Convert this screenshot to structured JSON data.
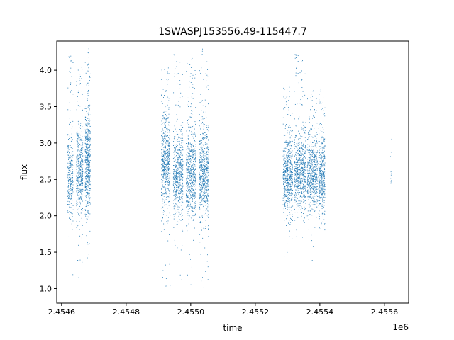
{
  "chart_data": {
    "type": "scatter",
    "title": "1SWASPJ153556.49-115447.7",
    "xlabel": "time",
    "ylabel": "flux",
    "x_offset_label": "1e6",
    "xlim": [
      2.454585,
      2.455675
    ],
    "ylim": [
      0.8,
      4.4
    ],
    "xticks": [
      2.4546,
      2.4548,
      2.455,
      2.4552,
      2.4554,
      2.4556
    ],
    "xtick_labels": [
      "2.4546",
      "2.4548",
      "2.4550",
      "2.4552",
      "2.4554",
      "2.4556"
    ],
    "yticks": [
      1.0,
      1.5,
      2.0,
      2.5,
      3.0,
      3.5,
      4.0
    ],
    "ytick_labels": [
      "1.0",
      "1.5",
      "2.0",
      "2.5",
      "3.0",
      "3.5",
      "4.0"
    ],
    "grid": false,
    "marker_color": "#1f77b4",
    "series": [
      {
        "note_visible_clusters": "dense point clouds per observing window",
        "clusters": [
          {
            "x_range": [
              2.454618,
              2.454635
            ],
            "y_center": 2.55,
            "y_spread": 0.28,
            "y_min": 1.15,
            "y_max": 4.25,
            "density": 300
          },
          {
            "x_range": [
              2.454645,
              2.454665
            ],
            "y_center": 2.6,
            "y_spread": 0.3,
            "y_min": 1.15,
            "y_max": 4.05,
            "density": 450
          },
          {
            "x_range": [
              2.454672,
              2.454688
            ],
            "y_center": 2.7,
            "y_spread": 0.33,
            "y_min": 1.35,
            "y_max": 4.3,
            "density": 550
          },
          {
            "x_range": [
              2.454908,
              2.454935
            ],
            "y_center": 2.75,
            "y_spread": 0.32,
            "y_min": 0.95,
            "y_max": 4.05,
            "density": 650
          },
          {
            "x_range": [
              2.454945,
              2.454975
            ],
            "y_center": 2.55,
            "y_spread": 0.28,
            "y_min": 1.1,
            "y_max": 4.25,
            "density": 600
          },
          {
            "x_range": [
              2.454985,
              2.455015
            ],
            "y_center": 2.55,
            "y_spread": 0.3,
            "y_min": 1.0,
            "y_max": 4.2,
            "density": 650
          },
          {
            "x_range": [
              2.455025,
              2.455055
            ],
            "y_center": 2.55,
            "y_spread": 0.3,
            "y_min": 0.95,
            "y_max": 4.32,
            "density": 650
          },
          {
            "x_range": [
              2.455285,
              2.455315
            ],
            "y_center": 2.55,
            "y_spread": 0.25,
            "y_min": 1.45,
            "y_max": 3.8,
            "density": 650
          },
          {
            "x_range": [
              2.45532,
              2.455355
            ],
            "y_center": 2.6,
            "y_spread": 0.26,
            "y_min": 1.65,
            "y_max": 4.25,
            "density": 650
          },
          {
            "x_range": [
              2.45536,
              2.455392
            ],
            "y_center": 2.55,
            "y_spread": 0.24,
            "y_min": 1.35,
            "y_max": 3.75,
            "density": 600
          },
          {
            "x_range": [
              2.455395,
              2.455415
            ],
            "y_center": 2.5,
            "y_spread": 0.25,
            "y_min": 1.75,
            "y_max": 3.75,
            "density": 450
          },
          {
            "x_range": [
              2.455618,
              2.455622
            ],
            "y_center": 2.6,
            "y_spread": 0.2,
            "y_min": 2.45,
            "y_max": 3.1,
            "density": 12
          }
        ]
      }
    ]
  }
}
